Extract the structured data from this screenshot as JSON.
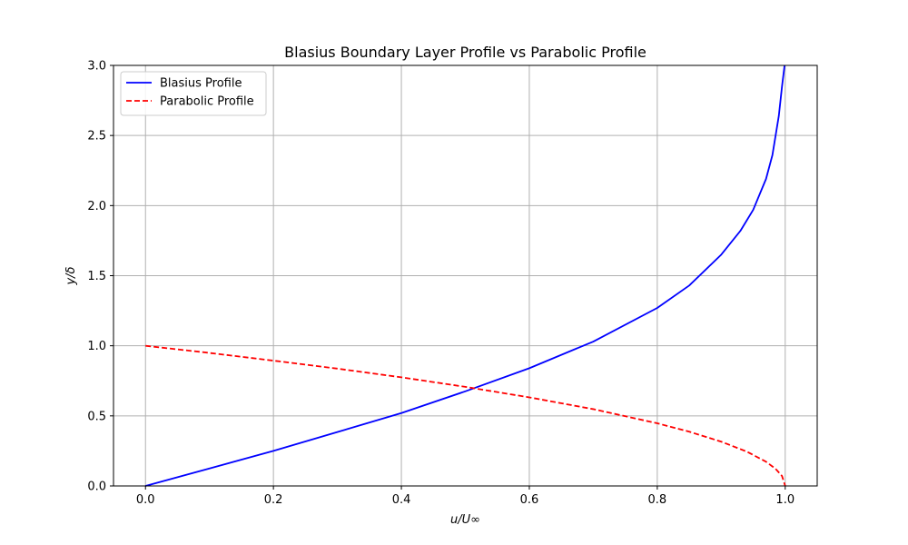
{
  "chart_data": {
    "type": "line",
    "title": "Blasius Boundary Layer Profile vs Parabolic Profile",
    "xlabel": "u/U∞",
    "ylabel": "y/δ",
    "xlim": [
      -0.05,
      1.05
    ],
    "ylim": [
      0,
      3.0
    ],
    "xticks": [
      0.0,
      0.2,
      0.4,
      0.6,
      0.8,
      1.0
    ],
    "xtick_labels": [
      "0.0",
      "0.2",
      "0.4",
      "0.6",
      "0.8",
      "1.0"
    ],
    "yticks": [
      0.0,
      0.5,
      1.0,
      1.5,
      2.0,
      2.5,
      3.0
    ],
    "ytick_labels": [
      "0.0",
      "0.5",
      "1.0",
      "1.5",
      "2.0",
      "2.5",
      "3.0"
    ],
    "grid": true,
    "legend_position": "upper-left",
    "series": [
      {
        "name": "Blasius Profile",
        "color": "#0000ff",
        "style": "solid",
        "x": [
          0.0,
          0.1,
          0.2,
          0.3,
          0.4,
          0.5,
          0.6,
          0.7,
          0.8,
          0.85,
          0.9,
          0.93,
          0.95,
          0.97,
          0.98,
          0.99,
          0.995,
          0.999
        ],
        "y": [
          0.0,
          0.125,
          0.25,
          0.385,
          0.52,
          0.675,
          0.84,
          1.03,
          1.27,
          1.43,
          1.65,
          1.82,
          1.97,
          2.19,
          2.36,
          2.64,
          2.85,
          3.0
        ]
      },
      {
        "name": "Parabolic Profile",
        "color": "#ff0000",
        "style": "dashed",
        "x": [
          0.0,
          0.1,
          0.2,
          0.3,
          0.4,
          0.5,
          0.6,
          0.7,
          0.8,
          0.85,
          0.9,
          0.94,
          0.97,
          0.985,
          0.995,
          1.0
        ],
        "y": [
          1.0,
          0.949,
          0.894,
          0.837,
          0.775,
          0.707,
          0.632,
          0.548,
          0.447,
          0.387,
          0.316,
          0.245,
          0.173,
          0.122,
          0.071,
          0.0
        ]
      }
    ]
  }
}
